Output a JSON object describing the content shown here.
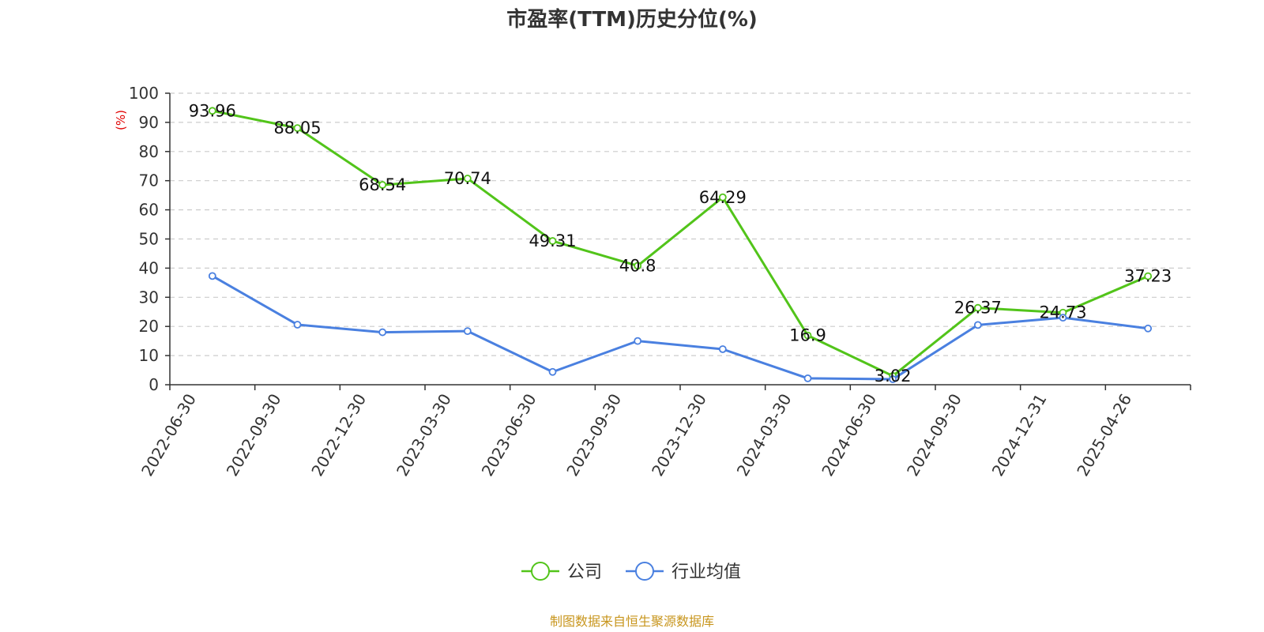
{
  "chart_data": {
    "type": "line",
    "title": "市盈率(TTM)历史分位(%)",
    "ylabel": "(%)",
    "xlabel": "",
    "ylim": [
      0,
      100
    ],
    "yticks": [
      0,
      10,
      20,
      30,
      40,
      50,
      60,
      70,
      80,
      90,
      100
    ],
    "grid": true,
    "legend_position": "bottom-center",
    "categories": [
      "2022-06-30",
      "2022-09-30",
      "2022-12-30",
      "2023-03-30",
      "2023-06-30",
      "2023-09-30",
      "2023-12-30",
      "2024-03-30",
      "2024-06-30",
      "2024-09-30",
      "2024-12-31",
      "2025-04-26"
    ],
    "series": [
      {
        "name": "公司",
        "color": "#52c41a",
        "show_labels": true,
        "values": [
          93.96,
          88.05,
          68.54,
          70.74,
          49.31,
          40.8,
          64.29,
          16.9,
          3.02,
          26.37,
          24.73,
          37.23
        ]
      },
      {
        "name": "行业均值",
        "color": "#4a80e0",
        "show_labels": false,
        "values": [
          37.3,
          20.6,
          18.0,
          18.4,
          4.4,
          15.0,
          12.2,
          2.2,
          1.9,
          20.5,
          23.0,
          19.3
        ]
      }
    ]
  },
  "source_note": "制图数据来自恒生聚源数据库"
}
